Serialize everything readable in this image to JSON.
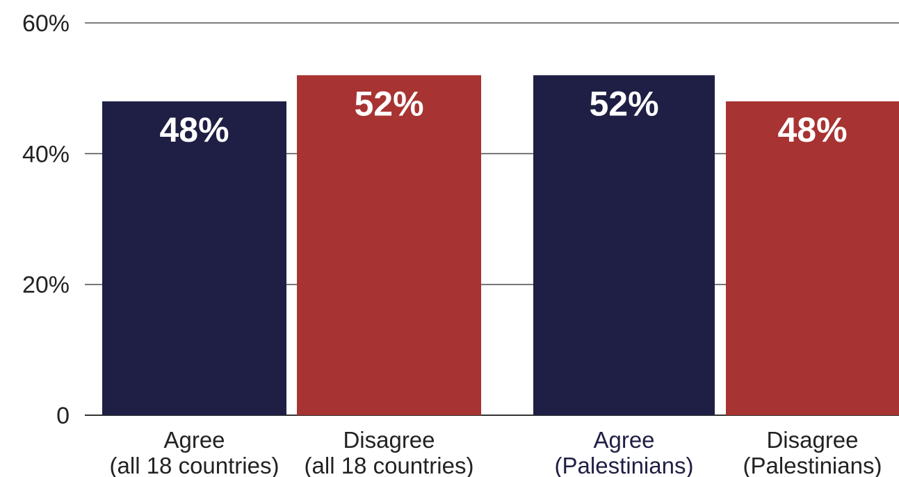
{
  "chart_data": {
    "type": "bar",
    "title": "",
    "xlabel": "",
    "ylabel": "",
    "ylim": [
      0,
      60
    ],
    "yticks": [
      {
        "value": 0,
        "label": "0"
      },
      {
        "value": 20,
        "label": "20%"
      },
      {
        "value": 40,
        "label": "40%"
      },
      {
        "value": 60,
        "label": "60%"
      }
    ],
    "grid": true,
    "legend": "none",
    "bars": [
      {
        "category": [
          "Agree",
          "(all 18 countries)"
        ],
        "value": 48,
        "label": "48%",
        "color": "#1f1f45",
        "label_color": "#222222"
      },
      {
        "category": [
          "Disagree",
          "(all 18 countries)"
        ],
        "value": 52,
        "label": "52%",
        "color": "#a73332",
        "label_color": "#222222"
      },
      {
        "category": [
          "Agree",
          "(Palestinians)"
        ],
        "value": 52,
        "label": "52%",
        "color": "#1f1f45",
        "label_color": "#1f1f45"
      },
      {
        "category": [
          "Disagree",
          "(Palestinians)"
        ],
        "value": 48,
        "label": "48%",
        "color": "#a73332",
        "label_color": "#222222"
      }
    ]
  }
}
